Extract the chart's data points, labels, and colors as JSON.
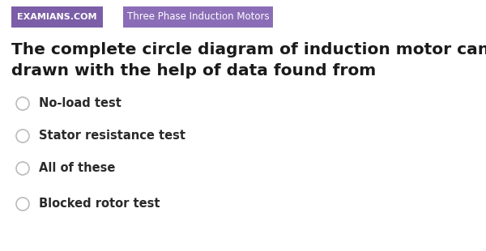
{
  "background_color": "#ffffff",
  "tag1_text": "EXAMIANS.COM",
  "tag1_bg": "#7B5EA7",
  "tag1_text_color": "#ffffff",
  "tag2_text": "Three Phase Induction Motors",
  "tag2_bg": "#8B6DB7",
  "tag2_text_color": "#ffffff",
  "question_line1": "The complete circle diagram of induction motor can be",
  "question_line2": "drawn with the help of data found from",
  "question_color": "#1a1a1a",
  "question_fontsize": 14.5,
  "options": [
    "No-load test",
    "Stator resistance test",
    "All of these",
    "Blocked rotor test"
  ],
  "option_color": "#2a2a2a",
  "option_fontsize": 10.5,
  "circle_edge_color": "#bbbbbb",
  "background_color_fig": "#ffffff"
}
